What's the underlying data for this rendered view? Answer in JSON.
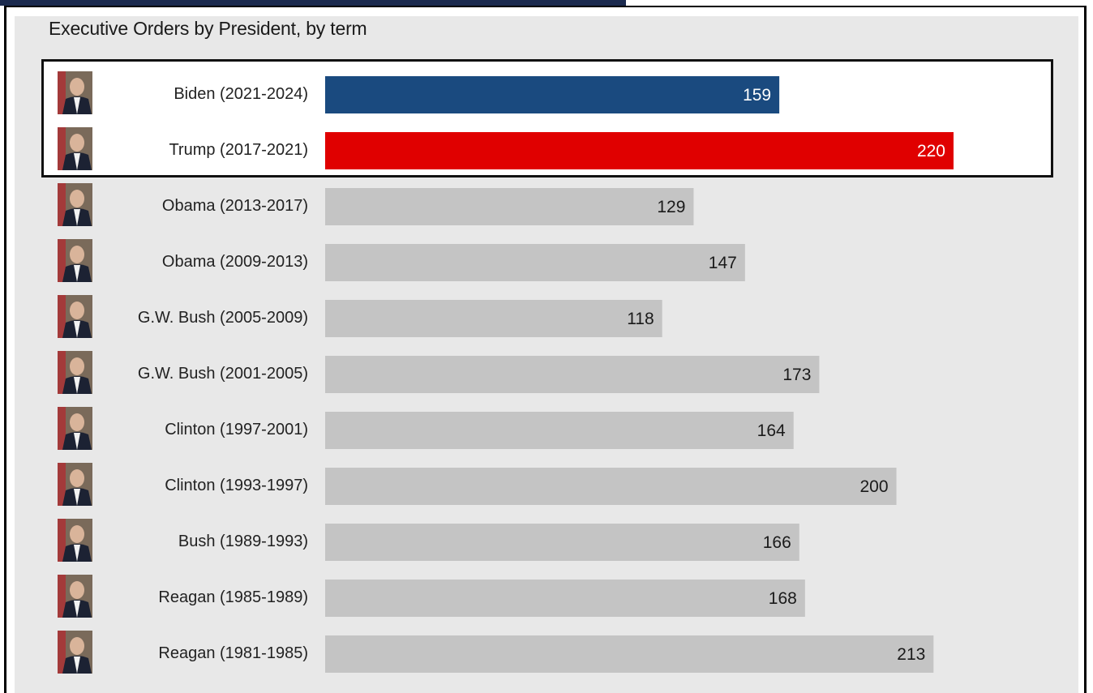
{
  "chart_data": {
    "type": "bar",
    "orientation": "horizontal",
    "title": "Executive Orders by President, by term",
    "categories": [
      "Biden (2021-2024)",
      "Trump (2017-2021)",
      "Obama (2013-2017)",
      "Obama (2009-2013)",
      "G.W. Bush (2005-2009)",
      "G.W. Bush (2001-2005)",
      "Clinton (1997-2001)",
      "Clinton (1993-1997)",
      "Bush (1989-1993)",
      "Reagan (1985-1989)",
      "Reagan (1981-1985)"
    ],
    "values": [
      159,
      220,
      129,
      147,
      118,
      173,
      164,
      200,
      166,
      168,
      213
    ],
    "xlim": [
      0,
      220
    ],
    "grid": false,
    "legend": "none",
    "highlighted": [
      "Biden (2021-2024)",
      "Trump (2017-2021)"
    ]
  },
  "colors": {
    "biden_bar": "#1a4a7f",
    "trump_bar": "#e00000",
    "default_bar": "#c4c4c4",
    "panel_bg": "#e8e8e8",
    "highlight_bg": "#ffffff",
    "value_on_dark": "#ffffff",
    "value_on_light": "#1a1a1a"
  },
  "bar_colors": [
    "biden_bar",
    "trump_bar",
    "default_bar",
    "default_bar",
    "default_bar",
    "default_bar",
    "default_bar",
    "default_bar",
    "default_bar",
    "default_bar",
    "default_bar"
  ],
  "portrait_icons": [
    "biden-portrait-icon",
    "trump-portrait-icon",
    "obama-portrait-icon",
    "obama-portrait-icon",
    "gw-bush-portrait-icon",
    "gw-bush-portrait-icon",
    "clinton-portrait-icon",
    "clinton-portrait-icon",
    "bush-portrait-icon",
    "reagan-portrait-icon",
    "reagan-portrait-icon"
  ]
}
